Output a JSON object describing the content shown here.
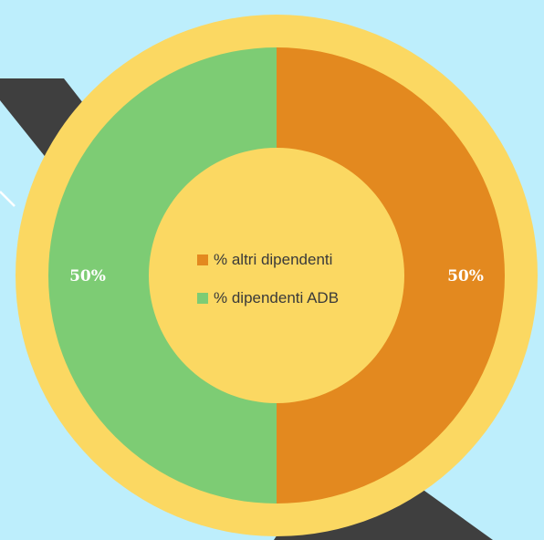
{
  "chart_data": {
    "type": "pie",
    "donut": true,
    "categories": [
      "% altri dipendenti",
      "% dipendenti ADB"
    ],
    "values": [
      50,
      50
    ],
    "data_labels": [
      "50%",
      "50%"
    ],
    "colors": [
      "#e3891f",
      "#7dcc74"
    ],
    "legend": {
      "placement": "center",
      "items": [
        {
          "label": "% altri dipendenti",
          "color": "#e3891f"
        },
        {
          "label": "% dipendenti ADB",
          "color": "#7dcc74"
        }
      ]
    }
  },
  "theme": {
    "background": "#bdeefc",
    "ring_color": "#fbd862",
    "hole_color": "#fbd862",
    "stripe_color": "#3f3f3f",
    "stripe_line_color": "#ffffff",
    "label_color": "#ffffff"
  }
}
